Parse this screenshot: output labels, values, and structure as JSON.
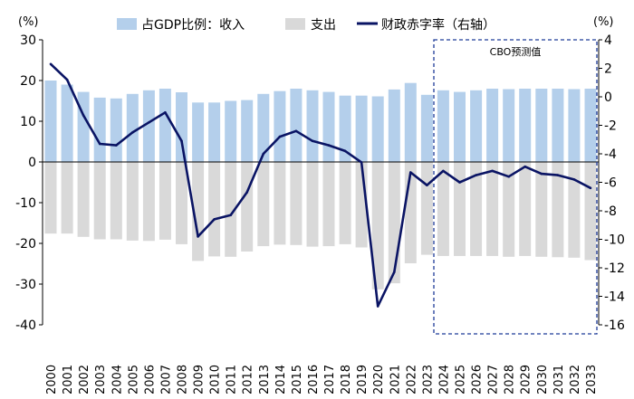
{
  "chart_data": {
    "type": "bar",
    "categories": [
      "2000",
      "2001",
      "2002",
      "2003",
      "2004",
      "2005",
      "2006",
      "2007",
      "2008",
      "2009",
      "2010",
      "2011",
      "2012",
      "2013",
      "2014",
      "2015",
      "2016",
      "2017",
      "2018",
      "2019",
      "2020",
      "2021",
      "2022",
      "2023",
      "2024",
      "2025",
      "2026",
      "2027",
      "2028",
      "2029",
      "2030",
      "2031",
      "2032",
      "2033"
    ],
    "series": [
      {
        "name": "占GDP比例：收入",
        "type": "bar",
        "axis": "left",
        "color": "#b4cfeb",
        "values": [
          20.0,
          19.0,
          17.2,
          15.8,
          15.6,
          16.7,
          17.6,
          18.0,
          17.1,
          14.6,
          14.6,
          15.0,
          15.2,
          16.7,
          17.4,
          18.0,
          17.6,
          17.2,
          16.3,
          16.3,
          16.1,
          17.8,
          19.4,
          16.5,
          17.6,
          17.2,
          17.6,
          18.0,
          17.9,
          18.0,
          18.0,
          18.0,
          17.9,
          18.0
        ]
      },
      {
        "name": "支出",
        "type": "bar",
        "axis": "left",
        "color": "#d9d9d9",
        "values": [
          -17.6,
          -17.6,
          -18.4,
          -19.0,
          -19.0,
          -19.3,
          -19.4,
          -19.1,
          -20.2,
          -24.3,
          -23.2,
          -23.3,
          -22.0,
          -20.7,
          -20.3,
          -20.4,
          -20.8,
          -20.7,
          -20.2,
          -21.0,
          -31.3,
          -29.8,
          -24.9,
          -22.8,
          -23.1,
          -23.1,
          -23.1,
          -23.1,
          -23.3,
          -23.1,
          -23.3,
          -23.4,
          -23.5,
          -24.1
        ]
      },
      {
        "name": "财政赤字率（右轴）",
        "type": "line",
        "axis": "right",
        "color": "#0a1464",
        "values": [
          2.3,
          1.2,
          -1.3,
          -3.3,
          -3.4,
          -2.5,
          -1.8,
          -1.1,
          -3.1,
          -9.8,
          -8.6,
          -8.3,
          -6.7,
          -4.0,
          -2.8,
          -2.4,
          -3.1,
          -3.4,
          -3.8,
          -4.6,
          -14.7,
          -12.3,
          -5.3,
          -6.2,
          -5.2,
          -6.0,
          -5.5,
          -5.2,
          -5.6,
          -4.9,
          -5.4,
          -5.5,
          -5.8,
          -6.4
        ]
      }
    ],
    "y_left": {
      "unit": "(%)",
      "ylim": [
        -40,
        30
      ],
      "ticks": [
        "30",
        "20",
        "10",
        "0",
        "-10",
        "-20",
        "-30",
        "-40"
      ]
    },
    "y_right": {
      "unit": "(%)",
      "ylim": [
        -16,
        4
      ],
      "ticks": [
        "4",
        "2",
        "0",
        "-2",
        "-4",
        "-6",
        "-8",
        "-10",
        "-12",
        "-14",
        "-16"
      ]
    },
    "annotation": {
      "text": "CBO预测值",
      "from": "2024",
      "to": "2033"
    },
    "legend_position": "top",
    "grid": false
  }
}
